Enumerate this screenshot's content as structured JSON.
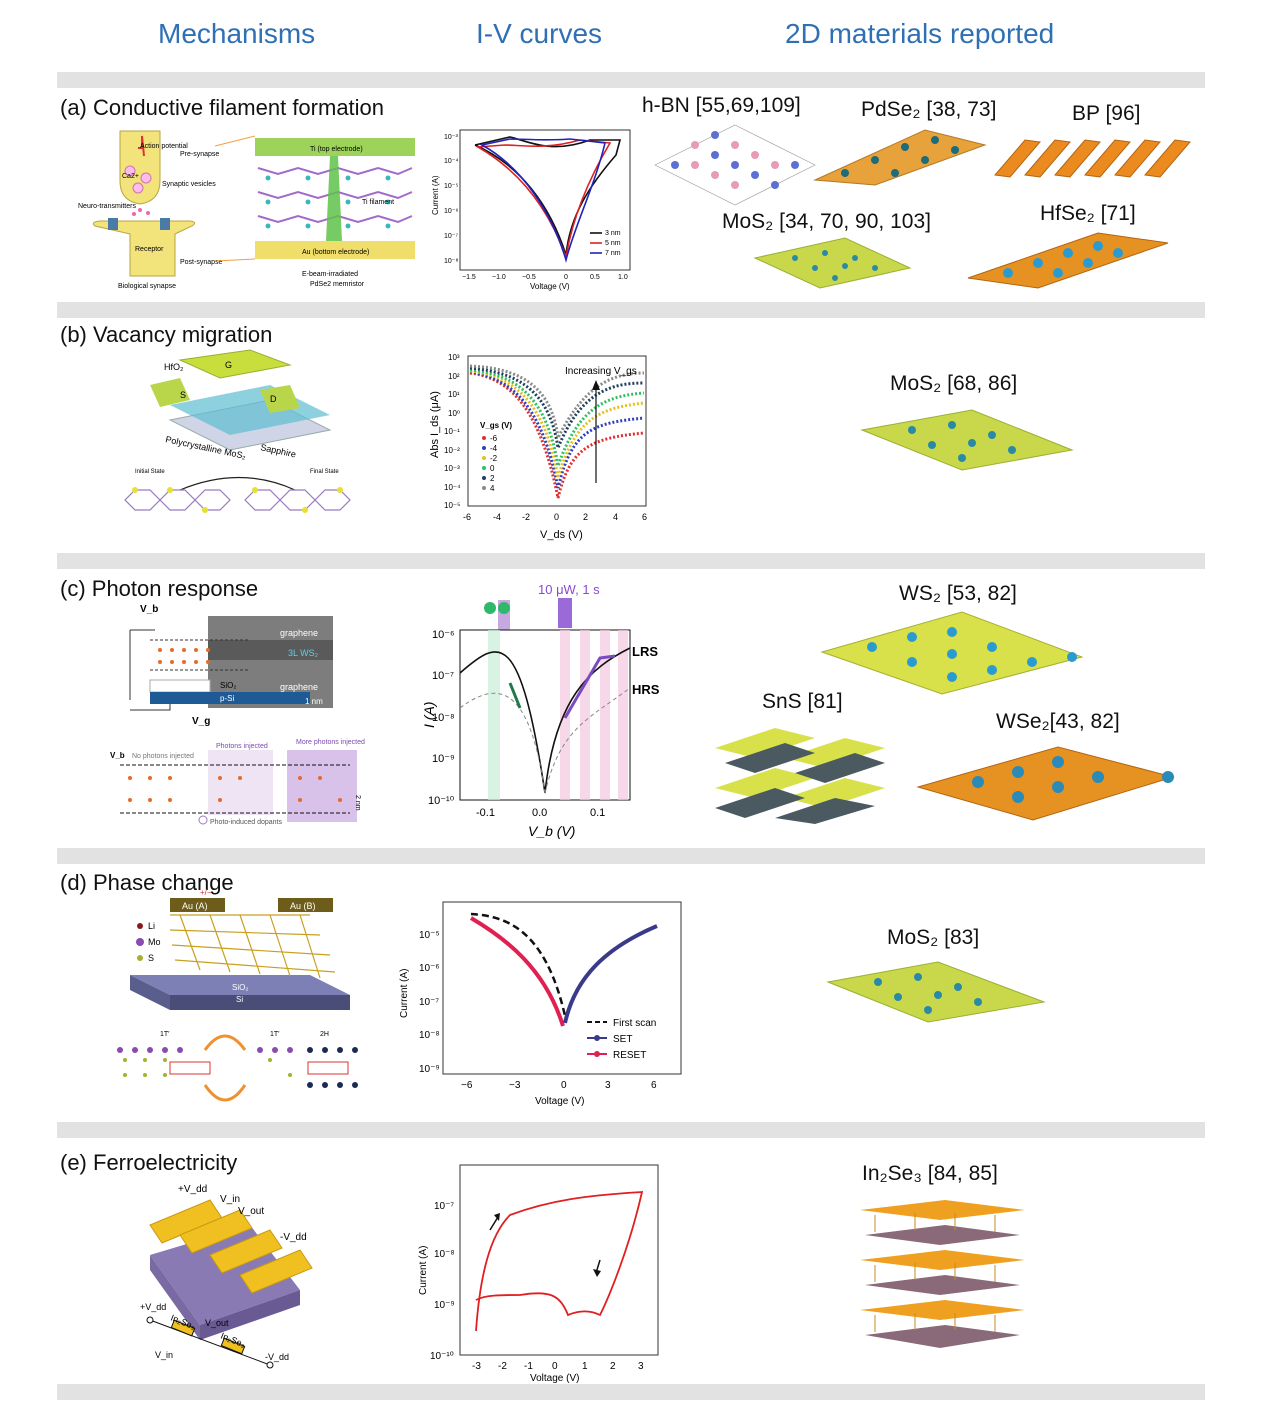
{
  "headers": {
    "mechanisms": "Mechanisms",
    "iv": "I-V curves",
    "materials": "2D materials reported"
  },
  "colors": {
    "header_blue": "#2f6fb4",
    "separator": "#e2e2e2"
  },
  "rows": [
    {
      "title": "(a) Conductive filament formation",
      "mechanism_labels": [
        "Action potential",
        "Pre-synapse",
        "Ca2+",
        "Synaptic vesicles",
        "Neuro-transmitters",
        "Receptor",
        "Post-synapse",
        "Biological synapse",
        "Ti (top electrode)",
        "Ti filament",
        "Au (bottom electrode)",
        "E-beam-irradiated",
        "PdSe2 memristor"
      ],
      "plot": {
        "ylabel": "Current (A)",
        "xlabel": "Voltage (V)",
        "xticks": [
          "−1.5",
          "−1.0",
          "−0.5",
          "0",
          "0.5",
          "1.0"
        ],
        "yticks": [
          "10⁻³",
          "10⁻⁴",
          "10⁻⁵",
          "10⁻⁶",
          "10⁻⁷",
          "10⁻⁸"
        ],
        "legend": [
          "3 nm",
          "5 nm",
          "7 nm"
        ]
      },
      "materials": [
        "h-BN [55,69,109]",
        "PdSe₂ [38, 73]",
        "BP [96]",
        "MoS₂ [34, 70, 90, 103]",
        "HfSe₂ [71]"
      ]
    },
    {
      "title": "(b) Vacancy migration",
      "mechanism_labels": [
        "HfO₂",
        "G",
        "S",
        "D",
        "Polycrystalline MoS₂",
        "Sapphire",
        "Initial State",
        "Final State"
      ],
      "plot": {
        "ylabel": "Abs I_ds (μA)",
        "xlabel": "V_ds (V)",
        "xticks": [
          "-6",
          "-4",
          "-2",
          "0",
          "2",
          "4",
          "6"
        ],
        "yticks": [
          "10³",
          "10²",
          "10¹",
          "10⁰",
          "10⁻¹",
          "10⁻²",
          "10⁻³",
          "10⁻⁴",
          "10⁻⁵"
        ],
        "annotation": "Increasing V_gs",
        "legend_title": "V_gs (V)",
        "legend": [
          "-6",
          "-4",
          "-2",
          "0",
          "2",
          "4"
        ]
      },
      "materials": [
        "MoS₂ [68, 86]"
      ]
    },
    {
      "title": "(c) Photon response",
      "mechanism_labels": [
        "V_b",
        "graphene",
        "3L WS₂",
        "graphene",
        "SiO₂",
        "p-Si",
        "1 nm",
        "V_g",
        "V_b",
        "No photons injected",
        "Photons injected",
        "More photons injected",
        "2 nm",
        "Photo-induced dopants"
      ],
      "plot": {
        "ylabel": "I (A)",
        "xlabel": "V_b (V)",
        "xticks": [
          "-0.1",
          "0.0",
          "0.1"
        ],
        "yticks": [
          "10⁻⁶",
          "10⁻⁷",
          "10⁻⁸",
          "10⁻⁹",
          "10⁻¹⁰"
        ],
        "annotations": [
          "10 μW, 1 s",
          "LRS",
          "HRS"
        ]
      },
      "materials": [
        "WS₂ [53, 82]",
        "SnS [81]",
        "WSe₂[43, 82]"
      ]
    },
    {
      "title": "(d) Phase change",
      "mechanism_labels": [
        "Au (A)",
        "Au (B)",
        "+/−",
        "Li",
        "Mo",
        "S",
        "SiO₂",
        "Si",
        "1T′",
        "1T′",
        "2H"
      ],
      "plot": {
        "ylabel": "Current (A)",
        "xlabel": "Voltage (V)",
        "xticks": [
          "−6",
          "−3",
          "0",
          "3",
          "6"
        ],
        "yticks": [
          "10⁻⁵",
          "10⁻⁶",
          "10⁻⁷",
          "10⁻⁸",
          "10⁻⁹"
        ],
        "legend": [
          "First scan",
          "SET",
          "RESET"
        ]
      },
      "materials": [
        "MoS₂ [83]"
      ]
    },
    {
      "title": "(e) Ferroelectricity",
      "mechanism_labels": [
        "+V_dd",
        "V_in",
        "V_out",
        "-V_dd",
        "+V_dd",
        "In₂Se₃",
        "V_out",
        "In₂Se₃",
        "-V_dd",
        "V_in"
      ],
      "plot": {
        "ylabel": "Current (A)",
        "xlabel": "Voltage (V)",
        "xticks": [
          "-3",
          "-2",
          "-1",
          "0",
          "1",
          "2",
          "3"
        ],
        "yticks": [
          "10⁻⁷",
          "10⁻⁸",
          "10⁻⁹",
          "10⁻¹⁰"
        ]
      },
      "materials": [
        "In₂Se₃ [84, 85]"
      ]
    }
  ]
}
